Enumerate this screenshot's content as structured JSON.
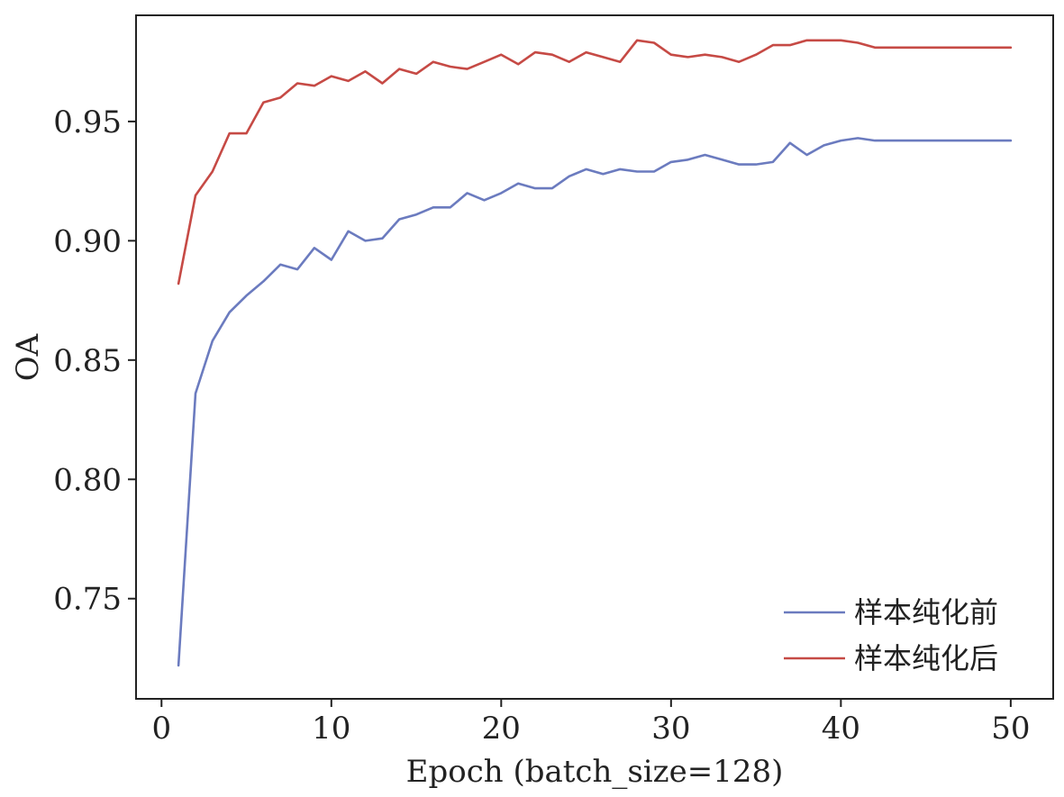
{
  "chart_data": {
    "type": "line",
    "xlabel": "Epoch (batch_size=128)",
    "ylabel": "OA",
    "xlim": [
      -1.5,
      52.5
    ],
    "ylim": [
      0.708,
      0.9945
    ],
    "xticks": [
      0,
      10,
      20,
      30,
      40,
      50
    ],
    "yticks": [
      0.75,
      0.8,
      0.85,
      0.9,
      0.95
    ],
    "xtick_labels": [
      "0",
      "10",
      "20",
      "30",
      "40",
      "50"
    ],
    "ytick_labels": [
      "0.75",
      "0.80",
      "0.85",
      "0.90",
      "0.95"
    ],
    "grid": false,
    "legend_position": "bottom-right",
    "series": [
      {
        "name": "样本纯化前",
        "color": "#6b7bbf",
        "x": [
          1,
          2,
          3,
          4,
          5,
          6,
          7,
          8,
          9,
          10,
          11,
          12,
          13,
          14,
          15,
          16,
          17,
          18,
          19,
          20,
          21,
          22,
          23,
          24,
          25,
          26,
          27,
          28,
          29,
          30,
          31,
          32,
          33,
          34,
          35,
          36,
          37,
          38,
          39,
          40,
          41,
          42,
          43,
          44,
          45,
          46,
          47,
          48,
          49,
          50
        ],
        "y": [
          0.722,
          0.836,
          0.858,
          0.87,
          0.877,
          0.883,
          0.89,
          0.888,
          0.897,
          0.892,
          0.904,
          0.9,
          0.901,
          0.909,
          0.911,
          0.914,
          0.914,
          0.92,
          0.917,
          0.92,
          0.924,
          0.922,
          0.922,
          0.927,
          0.93,
          0.928,
          0.93,
          0.929,
          0.929,
          0.933,
          0.934,
          0.936,
          0.934,
          0.932,
          0.932,
          0.933,
          0.941,
          0.936,
          0.94,
          0.942,
          0.943,
          0.942,
          0.942,
          0.942,
          0.942,
          0.942,
          0.942,
          0.942,
          0.942,
          0.942
        ]
      },
      {
        "name": "样本纯化后",
        "color": "#c64a45",
        "x": [
          1,
          2,
          3,
          4,
          5,
          6,
          7,
          8,
          9,
          10,
          11,
          12,
          13,
          14,
          15,
          16,
          17,
          18,
          19,
          20,
          21,
          22,
          23,
          24,
          25,
          26,
          27,
          28,
          29,
          30,
          31,
          32,
          33,
          34,
          35,
          36,
          37,
          38,
          39,
          40,
          41,
          42,
          43,
          44,
          45,
          46,
          47,
          48,
          49,
          50
        ],
        "y": [
          0.882,
          0.919,
          0.929,
          0.945,
          0.945,
          0.958,
          0.96,
          0.966,
          0.965,
          0.969,
          0.967,
          0.971,
          0.966,
          0.972,
          0.97,
          0.975,
          0.973,
          0.972,
          0.975,
          0.978,
          0.974,
          0.979,
          0.978,
          0.975,
          0.979,
          0.977,
          0.975,
          0.984,
          0.983,
          0.978,
          0.977,
          0.978,
          0.977,
          0.975,
          0.978,
          0.982,
          0.982,
          0.984,
          0.984,
          0.984,
          0.983,
          0.981,
          0.981,
          0.981,
          0.981,
          0.981,
          0.981,
          0.981,
          0.981,
          0.981
        ]
      }
    ]
  }
}
